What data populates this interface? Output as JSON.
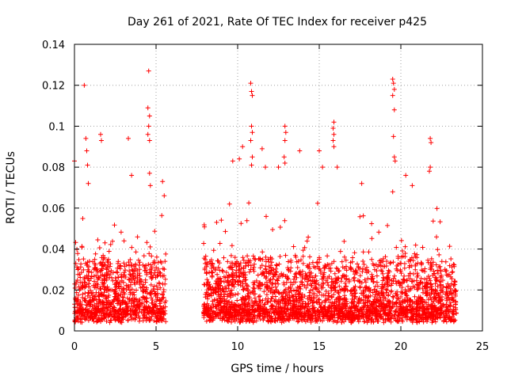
{
  "chart_data": {
    "type": "scatter",
    "title": "Day 261 of 2021, Rate Of TEC Index for receiver p425",
    "xlabel": "GPS time / hours",
    "ylabel": "ROTI / TECUs",
    "xlim": [
      0,
      25
    ],
    "ylim": [
      0,
      0.14
    ],
    "xticks": [
      "0",
      "5",
      "10",
      "15",
      "20",
      "25"
    ],
    "yticks": [
      "0",
      "0.02",
      "0.04",
      "0.06",
      "0.08",
      "0.1",
      "0.12",
      "0.14"
    ],
    "grid": true,
    "marker": "+",
    "color": "#ff0000",
    "series": [
      {
        "name": "ROTI",
        "segments": [
          [
            0.0,
            5.6
          ],
          [
            7.9,
            23.4
          ]
        ],
        "notable_points": [
          {
            "x": 0.0,
            "y": 0.083
          },
          {
            "x": 0.6,
            "y": 0.12
          },
          {
            "x": 0.7,
            "y": 0.094
          },
          {
            "x": 0.75,
            "y": 0.088
          },
          {
            "x": 0.8,
            "y": 0.081
          },
          {
            "x": 0.85,
            "y": 0.072
          },
          {
            "x": 1.6,
            "y": 0.096
          },
          {
            "x": 1.65,
            "y": 0.093
          },
          {
            "x": 3.3,
            "y": 0.094
          },
          {
            "x": 3.5,
            "y": 0.076
          },
          {
            "x": 4.55,
            "y": 0.127
          },
          {
            "x": 4.5,
            "y": 0.109
          },
          {
            "x": 4.6,
            "y": 0.105
          },
          {
            "x": 4.55,
            "y": 0.1
          },
          {
            "x": 4.5,
            "y": 0.096
          },
          {
            "x": 4.6,
            "y": 0.093
          },
          {
            "x": 4.6,
            "y": 0.077
          },
          {
            "x": 4.65,
            "y": 0.071
          },
          {
            "x": 5.4,
            "y": 0.073
          },
          {
            "x": 5.5,
            "y": 0.066
          },
          {
            "x": 9.5,
            "y": 0.062
          },
          {
            "x": 9.7,
            "y": 0.083
          },
          {
            "x": 10.1,
            "y": 0.084
          },
          {
            "x": 10.3,
            "y": 0.09
          },
          {
            "x": 10.8,
            "y": 0.121
          },
          {
            "x": 10.85,
            "y": 0.117
          },
          {
            "x": 10.9,
            "y": 0.115
          },
          {
            "x": 10.85,
            "y": 0.1
          },
          {
            "x": 10.9,
            "y": 0.097
          },
          {
            "x": 10.8,
            "y": 0.093
          },
          {
            "x": 10.9,
            "y": 0.085
          },
          {
            "x": 10.85,
            "y": 0.081
          },
          {
            "x": 11.5,
            "y": 0.089
          },
          {
            "x": 11.7,
            "y": 0.08
          },
          {
            "x": 12.5,
            "y": 0.08
          },
          {
            "x": 12.9,
            "y": 0.1
          },
          {
            "x": 12.95,
            "y": 0.097
          },
          {
            "x": 12.9,
            "y": 0.093
          },
          {
            "x": 12.85,
            "y": 0.085
          },
          {
            "x": 12.9,
            "y": 0.082
          },
          {
            "x": 13.8,
            "y": 0.088
          },
          {
            "x": 15.0,
            "y": 0.088
          },
          {
            "x": 15.2,
            "y": 0.08
          },
          {
            "x": 15.9,
            "y": 0.102
          },
          {
            "x": 15.85,
            "y": 0.099
          },
          {
            "x": 15.9,
            "y": 0.096
          },
          {
            "x": 15.85,
            "y": 0.093
          },
          {
            "x": 15.9,
            "y": 0.09
          },
          {
            "x": 16.1,
            "y": 0.08
          },
          {
            "x": 17.6,
            "y": 0.072
          },
          {
            "x": 19.5,
            "y": 0.123
          },
          {
            "x": 19.55,
            "y": 0.121
          },
          {
            "x": 19.6,
            "y": 0.118
          },
          {
            "x": 19.5,
            "y": 0.115
          },
          {
            "x": 19.6,
            "y": 0.108
          },
          {
            "x": 19.55,
            "y": 0.095
          },
          {
            "x": 19.6,
            "y": 0.085
          },
          {
            "x": 19.65,
            "y": 0.083
          },
          {
            "x": 19.5,
            "y": 0.068
          },
          {
            "x": 20.3,
            "y": 0.076
          },
          {
            "x": 20.7,
            "y": 0.071
          },
          {
            "x": 21.8,
            "y": 0.094
          },
          {
            "x": 21.85,
            "y": 0.092
          },
          {
            "x": 21.8,
            "y": 0.08
          },
          {
            "x": 21.75,
            "y": 0.078
          }
        ]
      }
    ]
  }
}
